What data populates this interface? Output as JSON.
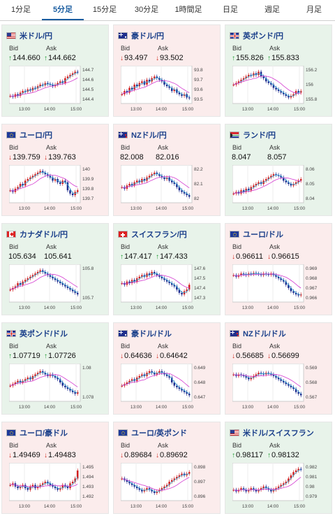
{
  "tabs": [
    "1分足",
    "5分足",
    "15分足",
    "30分足",
    "1時間足",
    "日足",
    "週足",
    "月足"
  ],
  "active_tab": 1,
  "labels": {
    "bid": "Bid",
    "ask": "Ask"
  },
  "times": [
    "13:00",
    "14:00",
    "15:00"
  ],
  "colors": {
    "up_card": "#e8f3ea",
    "down_card": "#fbecec",
    "bull": "#d11f1f",
    "bear": "#1f2c8f",
    "ma_short": "#36a9d8",
    "ma_long": "#d43ad0",
    "up_arrow": "#1c9a2f",
    "down_arrow": "#d0281d"
  },
  "cards": [
    {
      "pair": "米ドル/円",
      "flag": "us-flag",
      "trend": "up",
      "bid": "144.660",
      "ask": "144.662",
      "bid_dir": "up",
      "ask_dir": "up",
      "chart_data": {
        "type": "candlestick",
        "y_ticks": [
          "144.7",
          "144.6",
          "144.5",
          "144.4"
        ],
        "ylim": [
          144.35,
          144.75
        ],
        "shape": [
          0.15,
          0.12,
          0.2,
          0.15,
          0.25,
          0.3,
          0.28,
          0.35,
          0.32,
          0.4,
          0.38,
          0.45,
          0.5,
          0.48,
          0.55,
          0.52,
          0.5,
          0.45,
          0.5,
          0.55,
          0.6,
          0.55,
          0.7,
          0.75,
          0.8,
          0.85,
          0.9,
          0.88
        ]
      }
    },
    {
      "pair": "豪ドル/円",
      "flag": "au-flag",
      "trend": "down",
      "bid": "93.497",
      "ask": "93.502",
      "bid_dir": "down",
      "ask_dir": "down",
      "chart_data": {
        "type": "candlestick",
        "y_ticks": [
          "93.8",
          "93.7",
          "93.6",
          "93.5"
        ],
        "ylim": [
          93.45,
          93.85
        ],
        "shape": [
          0.2,
          0.3,
          0.25,
          0.4,
          0.35,
          0.5,
          0.45,
          0.55,
          0.6,
          0.5,
          0.65,
          0.6,
          0.7,
          0.75,
          0.7,
          0.65,
          0.6,
          0.5,
          0.45,
          0.4,
          0.3,
          0.35,
          0.25,
          0.2,
          0.15,
          0.2,
          0.1,
          0.08
        ]
      }
    },
    {
      "pair": "英ポンド/円",
      "flag": "gb-flag",
      "trend": "up",
      "bid": "155.826",
      "ask": "155.833",
      "bid_dir": "up",
      "ask_dir": "up",
      "chart_data": {
        "type": "candlestick",
        "y_ticks": [
          "156.2",
          "156",
          "155.8"
        ],
        "ylim": [
          155.6,
          156.3
        ],
        "shape": [
          0.5,
          0.55,
          0.6,
          0.65,
          0.7,
          0.75,
          0.8,
          0.78,
          0.85,
          0.8,
          0.9,
          0.75,
          0.7,
          0.6,
          0.55,
          0.5,
          0.4,
          0.35,
          0.3,
          0.25,
          0.2,
          0.15,
          0.1,
          0.15,
          0.2,
          0.3,
          0.25,
          0.3
        ]
      }
    },
    {
      "pair": "ユーロ/円",
      "flag": "eu-flag",
      "trend": "down",
      "bid": "139.759",
      "ask": "139.763",
      "bid_dir": "down",
      "ask_dir": "down",
      "chart_data": {
        "type": "candlestick",
        "y_ticks": [
          "140",
          "139.9",
          "139.8",
          "139.7"
        ],
        "ylim": [
          139.65,
          140.05
        ],
        "shape": [
          0.3,
          0.25,
          0.35,
          0.4,
          0.5,
          0.45,
          0.6,
          0.65,
          0.7,
          0.75,
          0.8,
          0.85,
          0.9,
          0.85,
          0.8,
          0.75,
          0.7,
          0.6,
          0.65,
          0.55,
          0.5,
          0.6,
          0.55,
          0.3,
          0.2,
          0.15,
          0.25,
          0.3
        ]
      }
    },
    {
      "pair": "NZドル/円",
      "flag": "nz-flag",
      "trend": "down",
      "bid": "82.008",
      "ask": "82.016",
      "bid_dir": "",
      "ask_dir": "",
      "chart_data": {
        "type": "candlestick",
        "y_ticks": [
          "82.2",
          "82.1",
          "82"
        ],
        "ylim": [
          81.95,
          82.3
        ],
        "shape": [
          0.4,
          0.35,
          0.45,
          0.5,
          0.45,
          0.55,
          0.6,
          0.55,
          0.65,
          0.6,
          0.7,
          0.75,
          0.8,
          0.85,
          0.8,
          0.75,
          0.7,
          0.65,
          0.7,
          0.6,
          0.55,
          0.5,
          0.4,
          0.3,
          0.25,
          0.2,
          0.15,
          0.1
        ]
      }
    },
    {
      "pair": "ランド/円",
      "flag": "za-flag",
      "trend": "up",
      "bid": "8.047",
      "ask": "8.057",
      "bid_dir": "",
      "ask_dir": "",
      "chart_data": {
        "type": "candlestick",
        "y_ticks": [
          "8.06",
          "8.05",
          "8.04"
        ],
        "ylim": [
          8.03,
          8.07
        ],
        "shape": [
          0.2,
          0.25,
          0.2,
          0.3,
          0.25,
          0.35,
          0.3,
          0.4,
          0.45,
          0.5,
          0.55,
          0.5,
          0.6,
          0.65,
          0.7,
          0.75,
          0.8,
          0.78,
          0.75,
          0.7,
          0.6,
          0.55,
          0.5,
          0.45,
          0.5,
          0.55,
          0.6,
          0.65
        ]
      }
    },
    {
      "pair": "カナダドル/円",
      "flag": "ca-flag",
      "trend": "up",
      "bid": "105.634",
      "ask": "105.641",
      "bid_dir": "",
      "ask_dir": "",
      "chart_data": {
        "type": "candlestick",
        "y_ticks": [
          "105.8",
          "105.7"
        ],
        "ylim": [
          105.55,
          105.9
        ],
        "shape": [
          0.3,
          0.35,
          0.4,
          0.5,
          0.45,
          0.55,
          0.6,
          0.65,
          0.7,
          0.75,
          0.8,
          0.85,
          0.9,
          0.85,
          0.8,
          0.75,
          0.7,
          0.65,
          0.6,
          0.55,
          0.5,
          0.45,
          0.4,
          0.35,
          0.3,
          0.25,
          0.2,
          0.15
        ]
      }
    },
    {
      "pair": "スイスフラン/円",
      "flag": "ch-flag",
      "trend": "up",
      "bid": "147.417",
      "ask": "147.433",
      "bid_dir": "up",
      "ask_dir": "up",
      "chart_data": {
        "type": "candlestick",
        "y_ticks": [
          "147.6",
          "147.5",
          "147.4",
          "147.3"
        ],
        "ylim": [
          147.25,
          147.65
        ],
        "shape": [
          0.5,
          0.45,
          0.55,
          0.5,
          0.6,
          0.55,
          0.65,
          0.7,
          0.75,
          0.7,
          0.8,
          0.75,
          0.85,
          0.8,
          0.75,
          0.7,
          0.65,
          0.6,
          0.55,
          0.5,
          0.45,
          0.4,
          0.3,
          0.2,
          0.15,
          0.25,
          0.3,
          0.45
        ]
      }
    },
    {
      "pair": "ユーロ/ドル",
      "flag": "eu-flag",
      "trend": "down",
      "bid": "0.96611",
      "ask": "0.96615",
      "bid_dir": "down",
      "ask_dir": "down",
      "chart_data": {
        "type": "candlestick",
        "y_ticks": [
          "0.969",
          "0.968",
          "0.967",
          "0.966"
        ],
        "ylim": [
          0.9655,
          0.9695
        ],
        "shape": [
          0.75,
          0.7,
          0.75,
          0.8,
          0.78,
          0.75,
          0.8,
          0.78,
          0.82,
          0.8,
          0.78,
          0.75,
          0.8,
          0.78,
          0.76,
          0.8,
          0.75,
          0.7,
          0.65,
          0.6,
          0.55,
          0.45,
          0.35,
          0.25,
          0.2,
          0.15,
          0.12,
          0.15
        ]
      }
    },
    {
      "pair": "英ポンド/ドル",
      "flag": "gb-flag",
      "trend": "up",
      "bid": "1.07719",
      "ask": "1.07726",
      "bid_dir": "up",
      "ask_dir": "up",
      "chart_data": {
        "type": "candlestick",
        "y_ticks": [
          "1.08",
          "1.078"
        ],
        "ylim": [
          1.0765,
          1.0815
        ],
        "shape": [
          0.4,
          0.45,
          0.5,
          0.55,
          0.5,
          0.55,
          0.6,
          0.65,
          0.6,
          0.7,
          0.75,
          0.8,
          0.85,
          0.8,
          0.75,
          0.7,
          0.75,
          0.7,
          0.65,
          0.6,
          0.5,
          0.4,
          0.35,
          0.3,
          0.25,
          0.2,
          0.15,
          0.2
        ]
      }
    },
    {
      "pair": "豪ドル/ドル",
      "flag": "au-flag",
      "trend": "down",
      "bid": "0.64636",
      "ask": "0.64642",
      "bid_dir": "down",
      "ask_dir": "down",
      "chart_data": {
        "type": "candlestick",
        "y_ticks": [
          "0.649",
          "0.648",
          "0.647"
        ],
        "ylim": [
          0.6465,
          0.6495
        ],
        "shape": [
          0.4,
          0.45,
          0.5,
          0.55,
          0.6,
          0.55,
          0.65,
          0.7,
          0.75,
          0.7,
          0.8,
          0.85,
          0.8,
          0.75,
          0.8,
          0.85,
          0.8,
          0.75,
          0.7,
          0.65,
          0.5,
          0.4,
          0.35,
          0.3,
          0.25,
          0.2,
          0.15,
          0.1
        ]
      }
    },
    {
      "pair": "NZドル/ドル",
      "flag": "nz-flag",
      "trend": "down",
      "bid": "0.56685",
      "ask": "0.56699",
      "bid_dir": "down",
      "ask_dir": "down",
      "chart_data": {
        "type": "candlestick",
        "y_ticks": [
          "0.569",
          "0.568",
          "0.567"
        ],
        "ylim": [
          0.5665,
          0.5695
        ],
        "shape": [
          0.75,
          0.7,
          0.75,
          0.72,
          0.7,
          0.65,
          0.6,
          0.65,
          0.7,
          0.75,
          0.8,
          0.78,
          0.75,
          0.8,
          0.78,
          0.75,
          0.7,
          0.65,
          0.6,
          0.55,
          0.5,
          0.45,
          0.4,
          0.35,
          0.3,
          0.2,
          0.15,
          0.1
        ]
      }
    },
    {
      "pair": "ユーロ/豪ドル",
      "flag": "eu-flag",
      "trend": "down",
      "bid": "1.49469",
      "ask": "1.49483",
      "bid_dir": "down",
      "ask_dir": "down",
      "chart_data": {
        "type": "candlestick",
        "y_ticks": [
          "1.495",
          "1.494",
          "1.493",
          "1.492"
        ],
        "ylim": [
          1.4915,
          1.4955
        ],
        "shape": [
          0.4,
          0.45,
          0.35,
          0.3,
          0.35,
          0.4,
          0.3,
          0.25,
          0.35,
          0.4,
          0.3,
          0.35,
          0.4,
          0.45,
          0.5,
          0.45,
          0.4,
          0.35,
          0.3,
          0.25,
          0.3,
          0.4,
          0.35,
          0.3,
          0.45,
          0.5,
          0.6,
          0.85
        ]
      }
    },
    {
      "pair": "ユーロ/英ポンド",
      "flag": "eu-flag",
      "trend": "down",
      "bid": "0.89684",
      "ask": "0.89692",
      "bid_dir": "down",
      "ask_dir": "down",
      "chart_data": {
        "type": "candlestick",
        "y_ticks": [
          "0.898",
          "0.897",
          "0.896"
        ],
        "ylim": [
          0.8955,
          0.8985
        ],
        "shape": [
          0.6,
          0.55,
          0.5,
          0.45,
          0.4,
          0.35,
          0.3,
          0.25,
          0.2,
          0.25,
          0.3,
          0.25,
          0.2,
          0.15,
          0.2,
          0.25,
          0.3,
          0.35,
          0.4,
          0.5,
          0.55,
          0.6,
          0.65,
          0.7,
          0.75,
          0.7,
          0.75,
          0.8
        ]
      }
    },
    {
      "pair": "米ドル/スイスフラン",
      "flag": "us-flag",
      "trend": "up",
      "bid": "0.98117",
      "ask": "0.98132",
      "bid_dir": "up",
      "ask_dir": "up",
      "chart_data": {
        "type": "candlestick",
        "y_ticks": [
          "0.982",
          "0.981",
          "0.98",
          "0.979"
        ],
        "ylim": [
          0.9785,
          0.9825
        ],
        "shape": [
          0.25,
          0.2,
          0.25,
          0.3,
          0.25,
          0.2,
          0.25,
          0.3,
          0.25,
          0.2,
          0.25,
          0.3,
          0.35,
          0.3,
          0.25,
          0.2,
          0.25,
          0.3,
          0.35,
          0.4,
          0.45,
          0.5,
          0.6,
          0.7,
          0.8,
          0.85,
          0.9,
          0.88
        ]
      }
    }
  ]
}
